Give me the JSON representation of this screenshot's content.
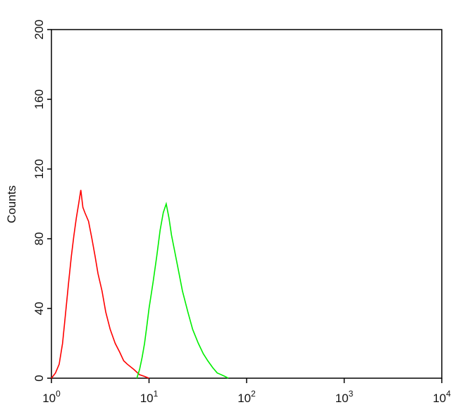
{
  "chart_data": {
    "type": "line",
    "ylabel": "Counts",
    "xscale": "log",
    "xlim": [
      1,
      10000
    ],
    "ylim": [
      0,
      200
    ],
    "xticks": [
      {
        "value": 1,
        "label": "10",
        "exponent": "0"
      },
      {
        "value": 10,
        "label": "10",
        "exponent": "1"
      },
      {
        "value": 100,
        "label": "10",
        "exponent": "2"
      },
      {
        "value": 1000,
        "label": "10",
        "exponent": "3"
      },
      {
        "value": 10000,
        "label": "10",
        "exponent": "4"
      }
    ],
    "yticks": [
      0,
      40,
      80,
      120,
      160,
      200
    ],
    "series": [
      {
        "color": "#ff0000",
        "x": [
          1.0,
          1.1,
          1.2,
          1.3,
          1.4,
          1.5,
          1.6,
          1.7,
          1.8,
          1.9,
          2.0,
          2.1,
          2.2,
          2.4,
          2.6,
          2.8,
          3.0,
          3.3,
          3.6,
          4.0,
          4.5,
          5.0,
          5.5,
          6.0,
          7.0,
          8.0,
          9.0,
          10
        ],
        "values": [
          0,
          3,
          8,
          20,
          38,
          55,
          70,
          82,
          92,
          100,
          108,
          98,
          95,
          90,
          80,
          70,
          60,
          50,
          38,
          28,
          20,
          15,
          10,
          8,
          5,
          2,
          1,
          0
        ]
      },
      {
        "color": "#00ee00",
        "x": [
          7.5,
          8,
          8.5,
          9,
          9.5,
          10,
          11,
          12,
          13,
          14,
          15,
          16,
          17,
          18,
          20,
          22,
          25,
          28,
          32,
          36,
          40,
          45,
          50,
          55,
          60,
          65
        ],
        "values": [
          0,
          5,
          12,
          20,
          30,
          40,
          55,
          70,
          85,
          95,
          100,
          92,
          82,
          75,
          62,
          50,
          38,
          28,
          20,
          14,
          10,
          6,
          3,
          2,
          1,
          0
        ]
      }
    ]
  }
}
